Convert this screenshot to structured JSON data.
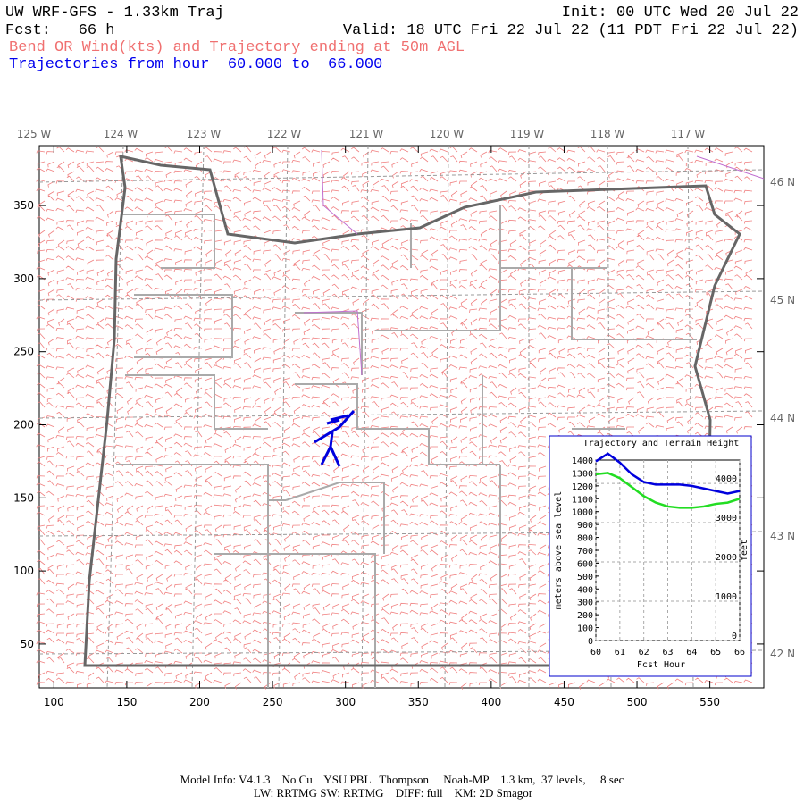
{
  "header": {
    "title": "UW WRF-GFS - 1.33km Traj",
    "init": "Init: 00 UTC Wed 20 Jul 22",
    "forecast": "Fcst:   66 h",
    "valid": "Valid: 18 UTC Fri 22 Jul 22 (11 PDT Fri 22 Jul 22)",
    "subtitle": "Bend OR Wind(kts) and Trajectory ending at 50m AGL",
    "trajectory_note": "Trajectories from hour  60.000 to  66.000"
  },
  "map": {
    "xlim": [
      90,
      587
    ],
    "ylim": [
      20,
      391
    ],
    "xticks": [
      100,
      150,
      200,
      250,
      300,
      350,
      400,
      450,
      500,
      550
    ],
    "yticks": [
      50,
      100,
      150,
      200,
      250,
      300,
      350
    ],
    "lon_labels": [
      "125 W",
      "124 W",
      "123 W",
      "122 W",
      "121 W",
      "120 W",
      "119 W",
      "118 W",
      "117 W"
    ],
    "lat_labels": [
      "46 N",
      "45 N",
      "44 N",
      "43 N",
      "42 N"
    ]
  },
  "chart_data": {
    "type": "line",
    "title": "Trajectory and Terrain Height",
    "x_label": "Fcst Hour",
    "y_label": "meters above sea level",
    "y2_label": "feet",
    "x": [
      60,
      60.5,
      61,
      61.5,
      62,
      62.5,
      63,
      63.5,
      64,
      64.5,
      65,
      65.5,
      66
    ],
    "series": [
      {
        "name": "Trajectory",
        "color": "#0000dd",
        "values": [
          1390,
          1450,
          1380,
          1290,
          1230,
          1210,
          1210,
          1210,
          1200,
          1180,
          1160,
          1140,
          1160
        ]
      },
      {
        "name": "Terrain",
        "color": "#22dd22",
        "values": [
          1290,
          1300,
          1260,
          1190,
          1120,
          1070,
          1040,
          1030,
          1030,
          1040,
          1060,
          1070,
          1100
        ]
      }
    ],
    "xlim": [
      60,
      66
    ],
    "xticks": [
      60,
      61,
      62,
      63,
      64,
      65,
      66
    ],
    "ylim": [
      0,
      1400
    ],
    "yticks": [
      0,
      100,
      200,
      300,
      400,
      500,
      600,
      700,
      800,
      900,
      1000,
      1100,
      1200,
      1300,
      1400
    ],
    "y2lim": [
      0,
      4593
    ],
    "y2ticks": [
      0,
      1000,
      2000,
      3000,
      4000
    ],
    "grid": true
  },
  "footer": {
    "line1": "Model Info: V4.1.3    No Cu    YSU PBL   Thompson     Noah-MP    1.3 km,  37 levels,     8 sec",
    "line2": "LW: RRTMG SW: RRTMG    DIFF: full    KM: 2D Smagor"
  }
}
